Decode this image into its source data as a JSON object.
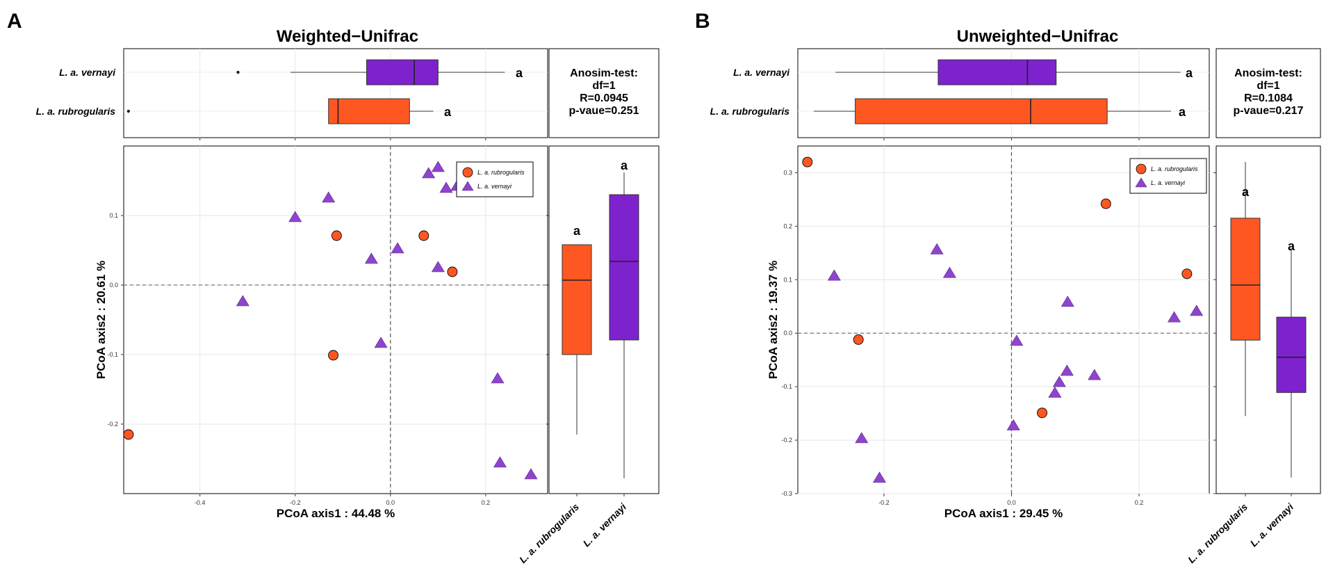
{
  "colors": {
    "rubrogularis": "#FF5722",
    "vernayi": "#7E22CE"
  },
  "chart_data": [
    {
      "panel": "A",
      "type": "scatter",
      "title": "Weighted−Unifrac",
      "xlabel": "PCoA axis1 : 44.48 %",
      "ylabel": "PCoA axis2 : 20.61 %",
      "xlim": [
        -0.56,
        0.33
      ],
      "ylim": [
        -0.3,
        0.2
      ],
      "xticks": [
        -0.4,
        -0.2,
        0.0,
        0.2
      ],
      "xtick_labels": [
        "-0.4",
        "-0.2",
        "0.0",
        "0.2"
      ],
      "yticks": [
        -0.2,
        -0.1,
        0.0,
        0.1
      ],
      "ytick_labels": [
        "-0.2",
        "-0.1",
        "0.0",
        "0.1"
      ],
      "legend": [
        "L. a. rubrogularis",
        "L. a. vernayi"
      ],
      "series": [
        {
          "name": "L. a. rubrogularis",
          "shape": "circle",
          "points": [
            [
              -0.55,
              -0.215
            ],
            [
              -0.113,
              0.071
            ],
            [
              -0.12,
              -0.101
            ],
            [
              0.07,
              0.071
            ],
            [
              0.13,
              0.019
            ]
          ]
        },
        {
          "name": "L. a. vernayi",
          "shape": "triangle",
          "points": [
            [
              0.1,
              0.17
            ],
            [
              0.08,
              0.161
            ],
            [
              0.117,
              0.14
            ],
            [
              0.14,
              0.143
            ],
            [
              -0.13,
              0.126
            ],
            [
              -0.2,
              0.098
            ],
            [
              0.015,
              0.053
            ],
            [
              -0.04,
              0.038
            ],
            [
              0.1,
              0.026
            ],
            [
              -0.31,
              -0.023
            ],
            [
              -0.02,
              -0.083
            ],
            [
              0.225,
              -0.134
            ],
            [
              0.23,
              -0.255
            ],
            [
              0.295,
              -0.272
            ]
          ]
        }
      ],
      "top_boxplot": {
        "orientation": "horizontal",
        "groups": [
          "L. a. vernayi",
          "L. a. rubrogularis"
        ],
        "boxes": [
          {
            "group": "L. a. vernayi",
            "whisker_low": -0.21,
            "q1": -0.05,
            "median": 0.05,
            "q3": 0.1,
            "whisker_high": 0.24,
            "outliers": [
              -0.32
            ],
            "letter": "a"
          },
          {
            "group": "L. a. rubrogularis",
            "whisker_low": -0.13,
            "q1": -0.13,
            "median": -0.11,
            "q3": 0.04,
            "whisker_high": 0.09,
            "outliers": [
              -0.55
            ],
            "letter": "a"
          }
        ]
      },
      "side_boxplot": {
        "orientation": "vertical",
        "groups": [
          "L. a. rubrogularis",
          "L. a. vernayi"
        ],
        "boxes": [
          {
            "group": "L. a. rubrogularis",
            "whisker_low": -0.215,
            "q1": -0.1,
            "median": 0.007,
            "q3": 0.058,
            "whisker_high": 0.058,
            "letter": "a"
          },
          {
            "group": "L. a. vernayi",
            "whisker_low": -0.278,
            "q1": -0.079,
            "median": 0.034,
            "q3": 0.13,
            "whisker_high": 0.162,
            "letter": "a"
          }
        ]
      },
      "anosim": [
        "Anosim-test:",
        "df=1",
        "R=0.0945",
        "p-vaue=0.251"
      ]
    },
    {
      "panel": "B",
      "type": "scatter",
      "title": "Unweighted−Unifrac",
      "xlabel": "PCoA axis1 : 29.45 %",
      "ylabel": "PCoA axis2 : 19.37 %",
      "xlim": [
        -0.335,
        0.31
      ],
      "ylim": [
        -0.3,
        0.35
      ],
      "xticks": [
        -0.2,
        0.0,
        0.2
      ],
      "xtick_labels": [
        "-0.2",
        "0.0",
        "0.2"
      ],
      "yticks": [
        -0.3,
        -0.2,
        -0.1,
        0.0,
        0.1,
        0.2,
        0.3
      ],
      "ytick_labels": [
        "-0.3",
        "-0.2",
        "-0.1",
        "0.0",
        "0.1",
        "0.2",
        "0.3"
      ],
      "legend": [
        "L. a. rubrogularis",
        "L. a. vernayi"
      ],
      "series": [
        {
          "name": "L. a. rubrogularis",
          "shape": "circle",
          "points": [
            [
              -0.32,
              0.32
            ],
            [
              -0.24,
              -0.012
            ],
            [
              0.048,
              -0.149
            ],
            [
              0.148,
              0.242
            ],
            [
              0.275,
              0.111
            ]
          ]
        },
        {
          "name": "L. a. vernayi",
          "shape": "triangle",
          "points": [
            [
              -0.278,
              0.108
            ],
            [
              -0.117,
              0.157
            ],
            [
              -0.097,
              0.113
            ],
            [
              0.008,
              -0.014
            ],
            [
              0.088,
              0.059
            ],
            [
              0.003,
              -0.172
            ],
            [
              -0.235,
              -0.196
            ],
            [
              -0.207,
              -0.27
            ],
            [
              0.087,
              -0.07
            ],
            [
              0.075,
              -0.091
            ],
            [
              0.068,
              -0.111
            ],
            [
              0.13,
              -0.078
            ],
            [
              0.255,
              0.03
            ],
            [
              0.29,
              0.042
            ]
          ]
        }
      ],
      "top_boxplot": {
        "orientation": "horizontal",
        "groups": [
          "L. a. vernayi",
          "L. a. rubrogularis"
        ],
        "boxes": [
          {
            "group": "L. a. vernayi",
            "whisker_low": -0.276,
            "q1": -0.115,
            "median": 0.025,
            "q3": 0.07,
            "whisker_high": 0.265,
            "outliers": [],
            "letter": "a"
          },
          {
            "group": "L. a. rubrogularis",
            "whisker_low": -0.31,
            "q1": -0.245,
            "median": 0.03,
            "q3": 0.15,
            "whisker_high": 0.25,
            "outliers": [],
            "letter": "a"
          }
        ]
      },
      "side_boxplot": {
        "orientation": "vertical",
        "groups": [
          "L. a. rubrogularis",
          "L. a. vernayi"
        ],
        "boxes": [
          {
            "group": "L. a. rubrogularis",
            "whisker_low": -0.155,
            "q1": -0.013,
            "median": 0.09,
            "q3": 0.215,
            "whisker_high": 0.32,
            "letter": "a"
          },
          {
            "group": "L. a. vernayi",
            "whisker_low": -0.27,
            "q1": -0.111,
            "median": -0.045,
            "q3": 0.03,
            "whisker_high": 0.158,
            "letter": "a"
          }
        ]
      },
      "anosim": [
        "Anosim-test:",
        "df=1",
        "R=0.1084",
        "p-vaue=0.217"
      ]
    }
  ]
}
